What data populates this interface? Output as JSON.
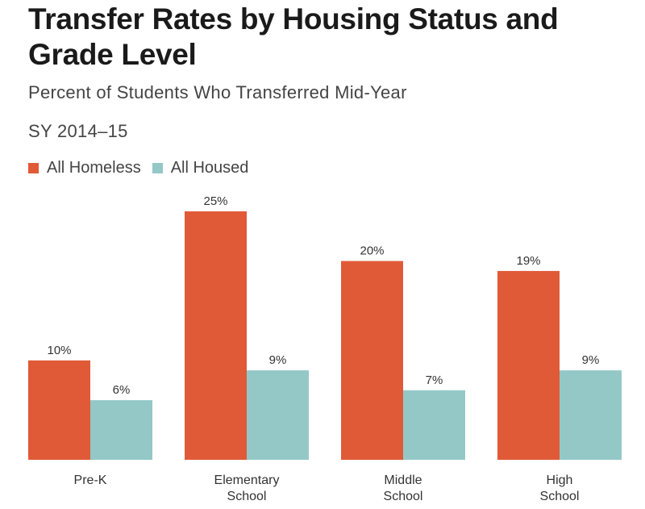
{
  "title": "Transfer Rates by Housing Status and Grade Level",
  "subtitle": "Percent of Students Who Transferred Mid-Year",
  "period": "SY 2014–15",
  "colors": {
    "homeless": "#e05a38",
    "housed": "#94c8c7"
  },
  "chart_data": {
    "type": "bar",
    "categories": [
      [
        "Pre-K"
      ],
      [
        "Elementary",
        "School"
      ],
      [
        "Middle",
        "School"
      ],
      [
        "High",
        "School"
      ]
    ],
    "series": [
      {
        "name": "All Homeless",
        "values": [
          10,
          25,
          20,
          19
        ],
        "labels": [
          "10%",
          "25%",
          "20%",
          "19%"
        ]
      },
      {
        "name": "All Housed",
        "values": [
          6,
          9,
          7,
          9
        ],
        "labels": [
          "6%",
          "9%",
          "7%",
          "9%"
        ]
      }
    ],
    "unit": "%",
    "ylim": [
      0,
      25
    ],
    "grid": false,
    "legend": "top-left"
  }
}
